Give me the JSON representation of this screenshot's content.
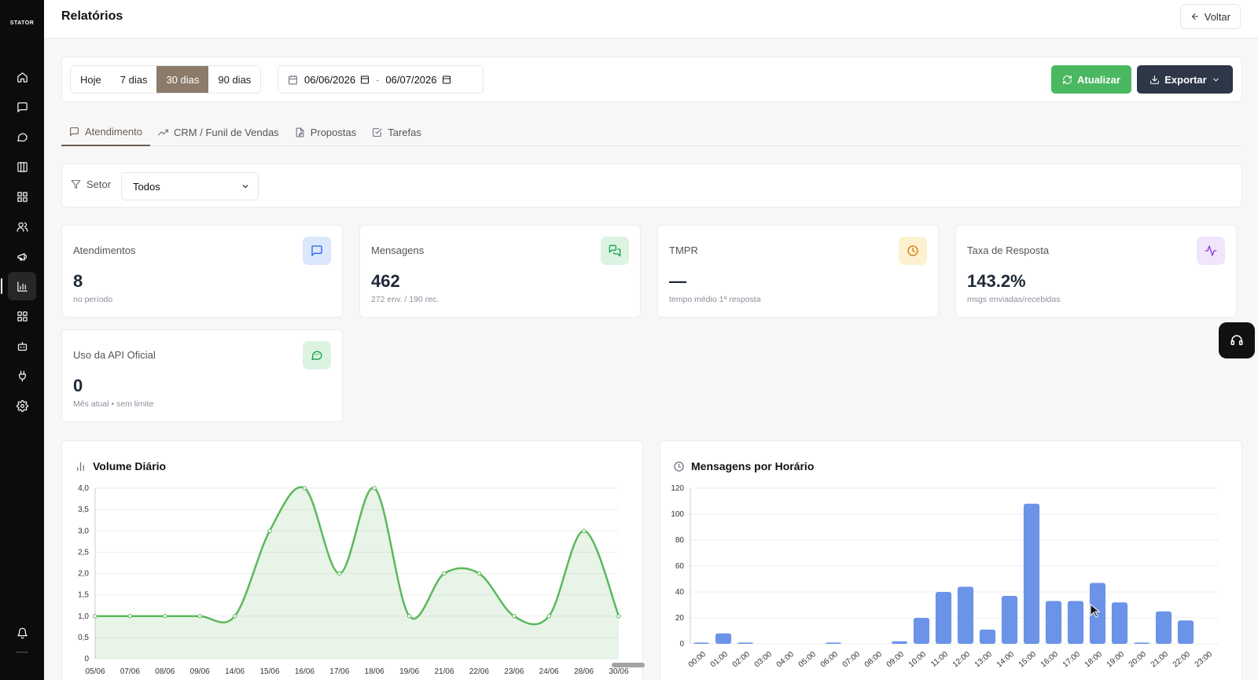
{
  "brand": "STATOR",
  "sidebar": {
    "items": [
      {
        "icon": "home-icon"
      },
      {
        "icon": "message-square-icon"
      },
      {
        "icon": "chat-bubble-icon"
      },
      {
        "icon": "kanban-icon"
      },
      {
        "icon": "dashboard-icon"
      },
      {
        "icon": "users-icon"
      },
      {
        "icon": "megaphone-icon"
      },
      {
        "icon": "bar-chart-icon",
        "active": true
      },
      {
        "icon": "apps-grid-icon"
      },
      {
        "icon": "bot-icon"
      },
      {
        "icon": "plug-icon"
      },
      {
        "icon": "gear-icon"
      }
    ],
    "bottom": [
      {
        "icon": "bell-icon"
      }
    ],
    "footer_text": "——"
  },
  "header": {
    "title": "Relatórios",
    "back_label": "Voltar"
  },
  "toolbar": {
    "periods": [
      "Hoje",
      "7 dias",
      "30 dias",
      "90 dias"
    ],
    "active_period": "30 dias",
    "date_from": "06/06/2026",
    "date_sep": "-",
    "date_to": "06/07/2026",
    "refresh_label": "Atualizar",
    "export_label": "Exportar"
  },
  "tabs": [
    {
      "label": "Atendimento",
      "active": true
    },
    {
      "label": "CRM / Funil de Vendas"
    },
    {
      "label": "Propostas"
    },
    {
      "label": "Tarefas"
    }
  ],
  "filter": {
    "label": "Setor",
    "value": "Todos"
  },
  "stats": [
    {
      "label": "Atendimentos",
      "value": "8",
      "sub": "no período",
      "color": "#2563eb",
      "bg": "#dbe7fb"
    },
    {
      "label": "Mensagens",
      "value": "462",
      "sub": "272 env. / 190 rec.",
      "color": "#16a34a",
      "bg": "#dcf3e1"
    },
    {
      "label": "TMPR",
      "value": "—",
      "sub": "tempo médio 1ª resposta",
      "color": "#d97706",
      "bg": "#fdf1cf"
    },
    {
      "label": "Taxa de Resposta",
      "value": "143.2%",
      "sub": "msgs enviadas/recebidas",
      "color": "#9333ea",
      "bg": "#f1e5fc"
    },
    {
      "label": "Uso da API Oficial",
      "value": "0",
      "sub": "Mês atual • sem limite",
      "color": "#16a34a",
      "bg": "#dcf3e1"
    }
  ],
  "chart_data": [
    {
      "type": "area",
      "title": "Volume Diário",
      "categories": [
        "05/06",
        "07/06",
        "08/06",
        "09/06",
        "14/06",
        "15/06",
        "16/06",
        "17/06",
        "18/06",
        "19/06",
        "21/06",
        "22/06",
        "23/06",
        "24/06",
        "28/06",
        "30/06"
      ],
      "values": [
        1,
        1,
        1,
        1,
        1,
        3,
        4,
        2,
        4,
        1,
        2,
        2,
        1,
        1,
        3,
        1
      ],
      "yticks": [
        "0",
        "0,5",
        "1,0",
        "1,5",
        "2,0",
        "2,5",
        "3,0",
        "3,5",
        "4,0"
      ],
      "ylim": [
        0,
        4
      ],
      "color": "#5cb85c",
      "grid": true
    },
    {
      "type": "bar",
      "title": "Mensagens por Horário",
      "categories": [
        "00:00",
        "01:00",
        "02:00",
        "03:00",
        "04:00",
        "05:00",
        "06:00",
        "07:00",
        "08:00",
        "09:00",
        "10:00",
        "11:00",
        "12:00",
        "13:00",
        "14:00",
        "15:00",
        "16:00",
        "17:00",
        "18:00",
        "19:00",
        "20:00",
        "21:00",
        "22:00",
        "23:00"
      ],
      "values": [
        1,
        8,
        1,
        0,
        0,
        0,
        1,
        0,
        0,
        2,
        20,
        40,
        44,
        11,
        37,
        108,
        33,
        33,
        47,
        32,
        1,
        25,
        18,
        0
      ],
      "yticks": [
        "0",
        "20",
        "40",
        "60",
        "80",
        "100",
        "120"
      ],
      "ylim": [
        0,
        120
      ],
      "color": "#6b93e8",
      "grid": true
    }
  ]
}
